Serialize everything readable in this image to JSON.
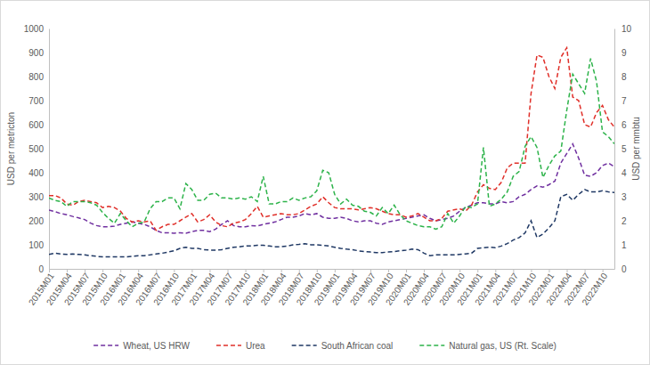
{
  "chart_data": {
    "type": "line",
    "y_label": "USD per metricton",
    "y2_label": "USD per mmbtu",
    "categories": [
      "2015M01",
      null,
      null,
      "2015M04",
      null,
      null,
      "2015M07",
      null,
      null,
      "2015M10",
      null,
      null,
      "2016M01",
      null,
      null,
      "2016M04",
      null,
      null,
      "2016M07",
      null,
      null,
      "2016M10",
      null,
      null,
      "2017M01",
      null,
      null,
      "2017M04",
      null,
      null,
      "2017M07",
      null,
      null,
      "2017M10",
      null,
      null,
      "2018M01",
      null,
      null,
      "2018M04",
      null,
      null,
      "2018M07",
      null,
      null,
      "2018M10",
      null,
      null,
      "2019M01",
      null,
      null,
      "2019M04",
      null,
      null,
      "2019M07",
      null,
      null,
      "2019M10",
      null,
      null,
      "2020M01",
      null,
      null,
      "2020M04",
      null,
      null,
      "2020M07",
      null,
      null,
      "2020M10",
      null,
      null,
      "2021M01",
      null,
      null,
      "2021M04",
      null,
      null,
      "2021M07",
      null,
      null,
      "2021M10",
      null,
      null,
      "2022M01",
      null,
      null,
      "2022M04",
      null,
      null,
      "2022M07",
      null,
      null,
      "2022M10",
      null,
      null
    ],
    "series": [
      {
        "name": "Wheat, US HRW",
        "color": "#7030a0",
        "line_style": "dashed",
        "values": [
          245,
          238,
          230,
          225,
          218,
          212,
          205,
          190,
          180,
          175,
          175,
          178,
          185,
          190,
          195,
          190,
          185,
          175,
          160,
          150,
          150,
          148,
          150,
          148,
          155,
          160,
          160,
          155,
          165,
          185,
          200,
          180,
          175,
          175,
          180,
          178,
          185,
          190,
          195,
          205,
          215,
          215,
          220,
          230,
          225,
          230,
          215,
          210,
          210,
          215,
          210,
          200,
          195,
          200,
          200,
          190,
          185,
          195,
          200,
          205,
          210,
          215,
          220,
          225,
          210,
          200,
          205,
          210,
          220,
          240,
          255,
          265,
          275,
          275,
          270,
          270,
          280,
          275,
          280,
          300,
          310,
          330,
          345,
          340,
          350,
          365,
          440,
          480,
          520,
          460,
          390,
          385,
          400,
          430,
          440,
          425
        ]
      },
      {
        "name": "Urea",
        "color": "#e0302a",
        "line_style": "dashed",
        "values": [
          305,
          305,
          295,
          270,
          265,
          280,
          285,
          280,
          275,
          255,
          260,
          255,
          240,
          210,
          195,
          200,
          195,
          200,
          160,
          175,
          185,
          185,
          200,
          215,
          230,
          195,
          205,
          225,
          195,
          180,
          175,
          190,
          195,
          205,
          230,
          260,
          215,
          220,
          225,
          230,
          225,
          225,
          230,
          245,
          260,
          270,
          300,
          275,
          255,
          250,
          250,
          250,
          245,
          250,
          255,
          250,
          240,
          230,
          225,
          225,
          215,
          220,
          230,
          215,
          200,
          200,
          210,
          240,
          245,
          250,
          240,
          265,
          320,
          350,
          335,
          330,
          360,
          420,
          440,
          440,
          440,
          730,
          890,
          880,
          800,
          750,
          880,
          920,
          715,
          700,
          600,
          590,
          650,
          680,
          620,
          590
        ]
      },
      {
        "name": "South African coal",
        "color": "#1f3864",
        "line_style": "dashed",
        "values": [
          60,
          65,
          62,
          60,
          62,
          60,
          58,
          55,
          52,
          50,
          50,
          50,
          50,
          50,
          52,
          55,
          55,
          58,
          62,
          65,
          70,
          75,
          85,
          90,
          85,
          85,
          80,
          78,
          78,
          80,
          85,
          90,
          92,
          95,
          95,
          98,
          98,
          95,
          92,
          92,
          95,
          100,
          102,
          105,
          100,
          100,
          98,
          95,
          90,
          85,
          82,
          80,
          75,
          72,
          70,
          68,
          68,
          70,
          72,
          75,
          78,
          82,
          80,
          65,
          55,
          58,
          58,
          58,
          58,
          60,
          62,
          65,
          85,
          88,
          90,
          88,
          95,
          105,
          120,
          130,
          150,
          200,
          130,
          145,
          170,
          200,
          300,
          310,
          285,
          310,
          330,
          320,
          320,
          325,
          320,
          318
        ]
      },
      {
        "name": "Natural gas, US (Rt. Scale)",
        "color": "#2db34a",
        "line_style": "dashed",
        "axis": "y2",
        "values": [
          2.95,
          2.85,
          2.8,
          2.6,
          2.8,
          2.8,
          2.8,
          2.75,
          2.65,
          2.35,
          2.1,
          1.9,
          2.3,
          2.0,
          1.75,
          1.9,
          1.95,
          2.5,
          2.8,
          2.8,
          2.95,
          2.95,
          2.5,
          3.55,
          3.3,
          2.85,
          2.85,
          3.1,
          3.15,
          2.95,
          2.95,
          2.9,
          2.95,
          2.9,
          3.0,
          2.8,
          3.85,
          2.7,
          2.7,
          2.8,
          2.8,
          2.95,
          2.85,
          2.95,
          3.0,
          3.25,
          4.1,
          4.0,
          3.1,
          2.7,
          2.9,
          2.65,
          2.6,
          2.4,
          2.35,
          2.2,
          2.55,
          2.3,
          2.65,
          2.25,
          2.0,
          1.9,
          1.8,
          1.75,
          1.75,
          1.65,
          1.75,
          2.3,
          1.9,
          2.2,
          2.6,
          2.55,
          2.7,
          5.05,
          2.6,
          2.7,
          2.9,
          3.2,
          3.85,
          4.05,
          5.1,
          5.5,
          5.05,
          3.8,
          4.3,
          4.7,
          4.9,
          6.6,
          8.1,
          7.7,
          7.3,
          8.75,
          7.8,
          5.7,
          5.5,
          5.2
        ]
      }
    ],
    "ylim": [
      0,
      1000
    ],
    "yticks": [
      0,
      100,
      200,
      300,
      400,
      500,
      600,
      700,
      800,
      900,
      1000
    ],
    "y2lim": [
      0,
      10
    ],
    "y2ticks": [
      0,
      1,
      2,
      3,
      4,
      5,
      6,
      7,
      8,
      9,
      10
    ],
    "grid": false,
    "legend": "bottom"
  }
}
